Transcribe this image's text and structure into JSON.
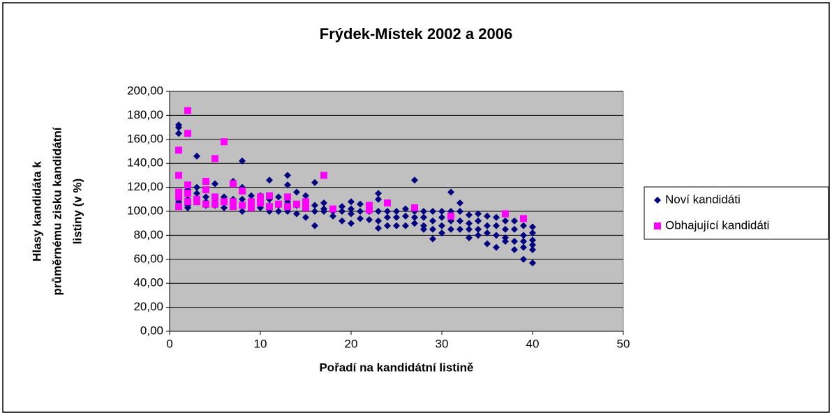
{
  "chart_data": {
    "type": "scatter",
    "title": "Frýdek-Místek 2002 a 2006",
    "x_label": "Pořadí na kandidátní listině",
    "y_label": [
      "Hlasy kandidáta k",
      "průměrnému zisku kandidátní",
      "listiny (v %)"
    ],
    "xlim": [
      0,
      50
    ],
    "xticks": [
      0,
      10,
      20,
      30,
      40,
      50
    ],
    "ylim": [
      0,
      200
    ],
    "yticks": [
      {
        "value": 0,
        "label": "0,00"
      },
      {
        "value": 20,
        "label": "20,00"
      },
      {
        "value": 40,
        "label": "40,00"
      },
      {
        "value": 60,
        "label": "60,00"
      },
      {
        "value": 80,
        "label": "80,00"
      },
      {
        "value": 100,
        "label": "100,00"
      },
      {
        "value": 120,
        "label": "120,00"
      },
      {
        "value": 140,
        "label": "140,00"
      },
      {
        "value": 160,
        "label": "160,00"
      },
      {
        "value": 180,
        "label": "180,00"
      },
      {
        "value": 200,
        "label": "200,00"
      }
    ],
    "grid": true,
    "legend": "right",
    "series": [
      {
        "name": "Noví kandidáti",
        "color": "#000080",
        "marker": "diamond",
        "x": [
          1,
          1,
          1,
          1,
          1,
          1,
          2,
          2,
          2,
          2,
          3,
          3,
          3,
          3,
          4,
          4,
          4,
          4,
          5,
          5,
          5,
          6,
          6,
          6,
          7,
          7,
          7,
          8,
          8,
          8,
          8,
          9,
          9,
          9,
          10,
          10,
          10,
          11,
          11,
          11,
          11,
          12,
          12,
          12,
          13,
          13,
          13,
          13,
          14,
          14,
          14,
          15,
          15,
          15,
          16,
          16,
          16,
          16,
          17,
          17,
          17,
          18,
          18,
          19,
          19,
          19,
          20,
          20,
          20,
          20,
          21,
          21,
          21,
          22,
          22,
          22,
          23,
          23,
          23,
          23,
          23,
          24,
          24,
          24,
          25,
          25,
          25,
          26,
          26,
          26,
          27,
          27,
          27,
          27,
          28,
          28,
          28,
          28,
          29,
          29,
          29,
          29,
          30,
          30,
          30,
          30,
          31,
          31,
          31,
          31,
          32,
          32,
          32,
          32,
          33,
          33,
          33,
          33,
          34,
          34,
          34,
          34,
          35,
          35,
          35,
          35,
          36,
          36,
          36,
          36,
          37,
          37,
          37,
          37,
          38,
          38,
          38,
          38,
          39,
          39,
          39,
          39,
          39,
          40,
          40,
          40,
          40,
          40,
          40
        ],
        "y": [
          172,
          170,
          165,
          110,
          108,
          105,
          118,
          110,
          103,
          105,
          146,
          120,
          115,
          110,
          118,
          112,
          108,
          105,
          123,
          110,
          105,
          112,
          108,
          103,
          125,
          110,
          105,
          142,
          120,
          110,
          100,
          113,
          108,
          104,
          113,
          108,
          103,
          126,
          110,
          105,
          100,
          112,
          105,
          100,
          130,
          122,
          108,
          100,
          116,
          105,
          98,
          113,
          105,
          95,
          124,
          105,
          100,
          88,
          107,
          102,
          100,
          100,
          96,
          104,
          100,
          92,
          108,
          102,
          98,
          90,
          106,
          100,
          94,
          105,
          100,
          93,
          115,
          110,
          100,
          92,
          86,
          100,
          95,
          88,
          100,
          95,
          88,
          102,
          96,
          88,
          126,
          100,
          95,
          90,
          100,
          95,
          88,
          85,
          100,
          92,
          85,
          77,
          100,
          95,
          88,
          82,
          116,
          100,
          92,
          85,
          107,
          100,
          92,
          85,
          97,
          90,
          85,
          78,
          98,
          92,
          85,
          80,
          96,
          88,
          82,
          73,
          95,
          88,
          80,
          70,
          92,
          85,
          78,
          75,
          92,
          85,
          75,
          68,
          88,
          80,
          75,
          70,
          60,
          87,
          82,
          76,
          72,
          68,
          57
        ]
      },
      {
        "name": "Obhajující kandidáti",
        "color": "#ff00ff",
        "marker": "square",
        "x": [
          1,
          1,
          1,
          1,
          1,
          2,
          2,
          2,
          2,
          2,
          3,
          3,
          4,
          4,
          4,
          5,
          5,
          5,
          6,
          6,
          7,
          7,
          7,
          8,
          8,
          9,
          9,
          10,
          10,
          11,
          11,
          12,
          13,
          13,
          14,
          15,
          15,
          17,
          18,
          22,
          22,
          24,
          27,
          31,
          37,
          39
        ],
        "y": [
          151,
          130,
          116,
          112,
          104,
          184,
          165,
          122,
          115,
          108,
          110,
          108,
          125,
          118,
          106,
          144,
          112,
          106,
          158,
          108,
          123,
          108,
          104,
          117,
          105,
          108,
          103,
          112,
          107,
          113,
          104,
          106,
          112,
          104,
          106,
          108,
          103,
          130,
          102,
          105,
          101,
          107,
          103,
          96,
          98,
          94
        ]
      }
    ]
  }
}
